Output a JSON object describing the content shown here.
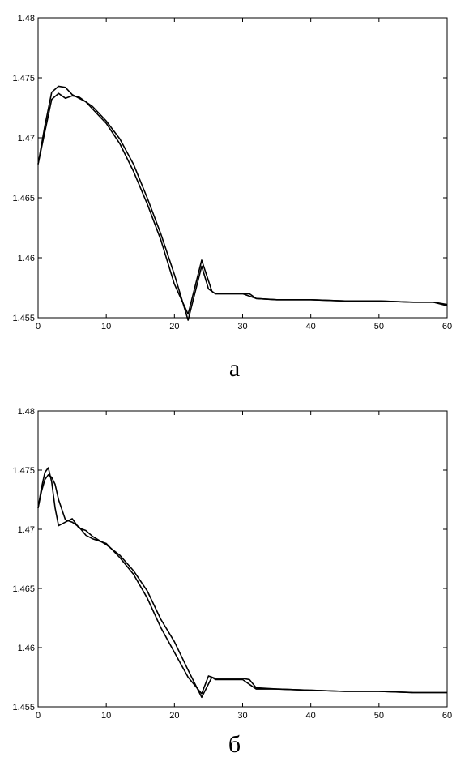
{
  "chart_data": [
    {
      "type": "line",
      "caption": "а",
      "title": "",
      "xlabel": "",
      "ylabel": "",
      "xlim": [
        0,
        60
      ],
      "ylim": [
        1.455,
        1.48
      ],
      "xticks": [
        0,
        10,
        20,
        30,
        40,
        50,
        60
      ],
      "yticks": [
        "1.455",
        "1.46",
        "1.465",
        "1.47",
        "1.475",
        "1.48"
      ],
      "grid": false,
      "series_color": "#000000",
      "series": [
        {
          "x": [
            0,
            1,
            2,
            3,
            4,
            5,
            6,
            7,
            8,
            10,
            12,
            14,
            16,
            18,
            20,
            22,
            24,
            25.5,
            26,
            28,
            30,
            31,
            32,
            35,
            40,
            45,
            50,
            55,
            58,
            60
          ],
          "y": [
            1.4678,
            1.471,
            1.4738,
            1.4743,
            1.4742,
            1.4736,
            1.4733,
            1.473,
            1.4724,
            1.4712,
            1.4695,
            1.4672,
            1.4645,
            1.4615,
            1.4578,
            1.4553,
            1.4598,
            1.4572,
            1.457,
            1.457,
            1.457,
            1.4568,
            1.4566,
            1.4565,
            1.4565,
            1.4564,
            1.4564,
            1.4563,
            1.4563,
            1.4561
          ]
        },
        {
          "x": [
            0,
            1,
            2,
            3,
            4,
            5,
            6,
            7,
            8,
            10,
            12,
            14,
            16,
            18,
            20,
            22,
            24,
            25,
            26,
            28,
            30,
            31,
            32,
            35,
            40,
            45,
            50,
            55,
            58,
            60
          ],
          "y": [
            1.4678,
            1.4705,
            1.4732,
            1.4737,
            1.4733,
            1.4735,
            1.4734,
            1.473,
            1.4726,
            1.4714,
            1.4699,
            1.4678,
            1.465,
            1.462,
            1.4586,
            1.4548,
            1.4593,
            1.4574,
            1.457,
            1.457,
            1.457,
            1.457,
            1.4566,
            1.4565,
            1.4565,
            1.4564,
            1.4564,
            1.4563,
            1.4563,
            1.456
          ]
        }
      ]
    },
    {
      "type": "line",
      "caption": "б",
      "title": "",
      "xlabel": "",
      "ylabel": "",
      "xlim": [
        0,
        60
      ],
      "ylim": [
        1.455,
        1.48
      ],
      "xticks": [
        0,
        10,
        20,
        30,
        40,
        50,
        60
      ],
      "yticks": [
        "1.455",
        "1.46",
        "1.465",
        "1.47",
        "1.475",
        "1.48"
      ],
      "grid": false,
      "series_color": "#000000",
      "series": [
        {
          "x": [
            0,
            0.5,
            1,
            1.5,
            2,
            2.5,
            3,
            4,
            5,
            6,
            7,
            8,
            10,
            12,
            14,
            16,
            18,
            20,
            22,
            24,
            25.5,
            26,
            28,
            30,
            31,
            32,
            35,
            40,
            45,
            50,
            55,
            60
          ],
          "y": [
            1.4718,
            1.4735,
            1.4748,
            1.4752,
            1.474,
            1.4718,
            1.4703,
            1.4706,
            1.4709,
            1.4701,
            1.4699,
            1.4694,
            1.4687,
            1.4678,
            1.4665,
            1.4648,
            1.4624,
            1.4605,
            1.4581,
            1.4558,
            1.4575,
            1.4573,
            1.4573,
            1.4573,
            1.4569,
            1.4565,
            1.4565,
            1.4564,
            1.4563,
            1.4563,
            1.4562,
            1.4562
          ]
        },
        {
          "x": [
            0,
            0.5,
            1,
            1.5,
            2,
            2.5,
            3,
            4,
            5,
            6,
            7,
            8,
            10,
            12,
            14,
            16,
            18,
            20,
            22,
            24,
            25,
            26,
            28,
            30,
            31,
            32,
            35,
            40,
            45,
            50,
            55,
            60
          ],
          "y": [
            1.4718,
            1.4732,
            1.4742,
            1.4746,
            1.4744,
            1.4738,
            1.4725,
            1.4708,
            1.4706,
            1.4702,
            1.4695,
            1.4692,
            1.4688,
            1.4676,
            1.4662,
            1.4642,
            1.4617,
            1.4596,
            1.4575,
            1.4561,
            1.4576,
            1.4574,
            1.4574,
            1.4574,
            1.4573,
            1.4566,
            1.4565,
            1.4564,
            1.4563,
            1.4563,
            1.4562,
            1.4562
          ]
        }
      ]
    }
  ]
}
